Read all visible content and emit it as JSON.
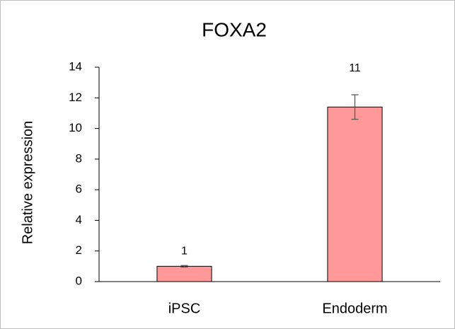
{
  "chart_data": {
    "type": "bar",
    "title": "FOXA2",
    "y_label": "Relative expression",
    "categories": [
      "iPSC",
      "Endoderm"
    ],
    "values": [
      1,
      11.4
    ],
    "value_labels": [
      "1",
      "11"
    ],
    "errors": [
      0.05,
      0.8
    ],
    "color": "#ff9999",
    "edge_color": "#000000",
    "ylim": [
      0,
      14
    ],
    "yticks": [
      0,
      2,
      4,
      6,
      8,
      10,
      12,
      14
    ],
    "grid": false
  }
}
